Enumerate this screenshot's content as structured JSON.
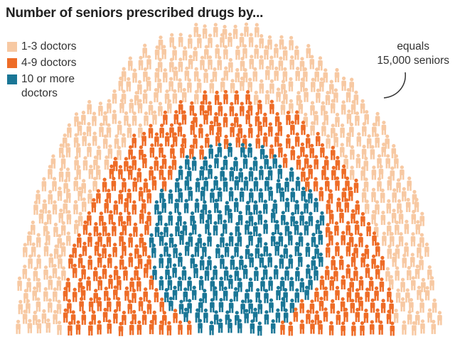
{
  "title": "Number of seniors prescribed drugs by...",
  "legend": [
    {
      "label": "1-3 doctors",
      "color": "#f7c9a3"
    },
    {
      "label": "4-9 doctors",
      "color": "#ee6c27"
    },
    {
      "label": "10 or more doctors",
      "color": "#1a7696"
    }
  ],
  "scale_note": {
    "line1": "equals",
    "line2": "15,000 seniors"
  },
  "chart_data": {
    "type": "isotype",
    "title": "Number of seniors prescribed drugs by...",
    "unit": "1 icon = 15,000 seniors",
    "categories": [
      "1-3 doctors",
      "4-9 doctors",
      "10 or more doctors"
    ],
    "colors": [
      "#f7c9a3",
      "#ee6c27",
      "#1a7696"
    ],
    "layers": [
      "outer",
      "middle",
      "inner"
    ]
  }
}
